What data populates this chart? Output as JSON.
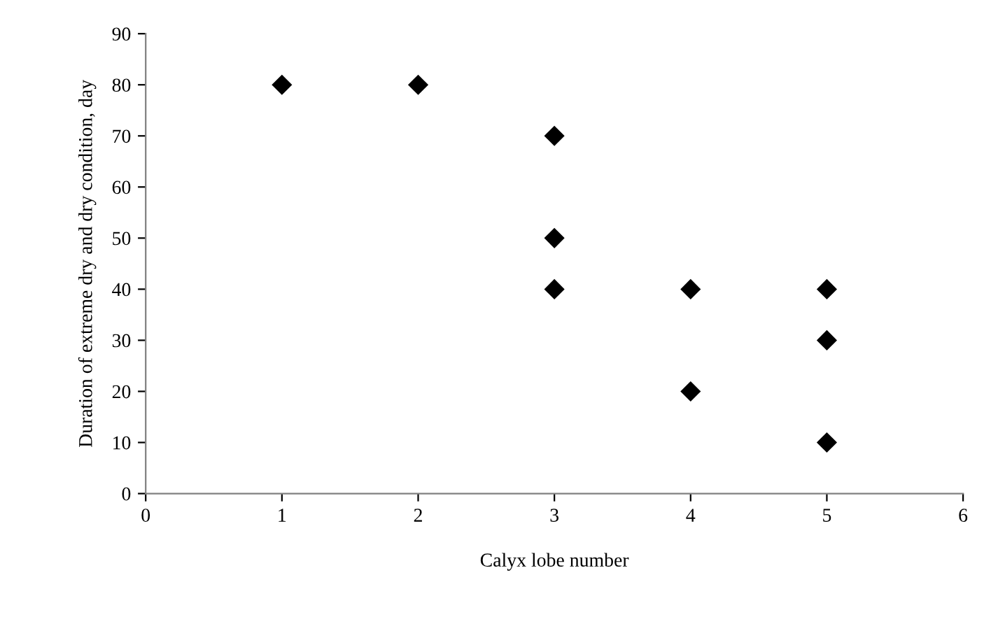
{
  "chart_data": {
    "type": "scatter",
    "xlabel": "Calyx lobe number",
    "ylabel": "Duration of extreme dry and dry condition, day",
    "x": [
      1,
      2,
      3,
      3,
      3,
      4,
      4,
      5,
      5,
      5
    ],
    "values": [
      80,
      80,
      70,
      50,
      40,
      40,
      20,
      40,
      30,
      10
    ],
    "color": "#000000",
    "marker": "diamond",
    "grid": false,
    "legend": false,
    "xlim": [
      0,
      6
    ],
    "xticks": [
      0,
      1,
      2,
      3,
      4,
      5,
      6
    ],
    "ylim": [
      0,
      90
    ],
    "yticks": [
      0,
      10,
      20,
      30,
      40,
      50,
      60,
      70,
      80,
      90
    ]
  }
}
